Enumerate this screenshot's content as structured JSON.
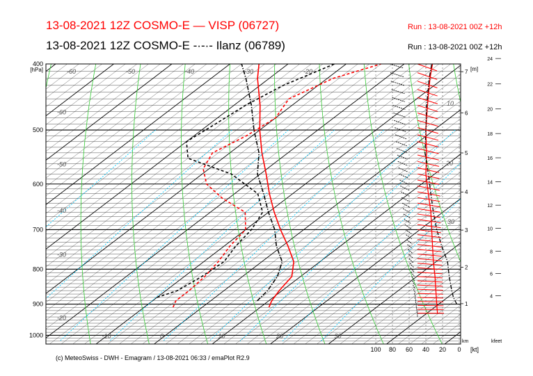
{
  "header": {
    "title_red": "13-08-2021 12Z COSMO-E  —  VISP (06727)",
    "title_black": "13-08-2021 12Z COSMO-E  -·-·- Ilanz (06789)",
    "run_red": "Run : 13-08-2021 00Z +12h",
    "run_black": "Run : 13-08-2021 00Z +12h"
  },
  "footer": {
    "credit": "(c) MeteoSwiss - DWH - Emagram / 13-08-2021  06:33 / emaPlot R2.9"
  },
  "colors": {
    "visp": "#ff0000",
    "ilanz": "#000000",
    "dry_adiabat": "#000000",
    "moist_adiabat": "#33cc33",
    "mixing_ratio": "#00ccff"
  },
  "chart_data": {
    "type": "line",
    "chart_kind": "emagram",
    "ylabel": "[hPa]",
    "pressure_ticks": [
      "400",
      "500",
      "600",
      "700",
      "800",
      "900",
      "1000"
    ],
    "pressure_range": [
      400,
      1030
    ],
    "isotherm_labels": [
      "-60",
      "-50",
      "-40",
      "-30",
      "-20",
      "-10",
      "0",
      "10",
      "20",
      "30"
    ],
    "upper_temp_labels": [
      "-60",
      "-50",
      "-40",
      "-30",
      "-20"
    ],
    "km_label": "[m]",
    "km_ticks": [
      "1",
      "2",
      "3",
      "4",
      "5",
      "6",
      "7"
    ],
    "km_values": [
      1,
      2,
      3,
      4,
      5,
      6,
      7
    ],
    "km_axis_label": "km",
    "kfeet_label": "kfeet",
    "kfeet_ticks": [
      "4",
      "6",
      "8",
      "10",
      "12",
      "14",
      "16",
      "18",
      "20",
      "22",
      "24"
    ],
    "kfeet_values": [
      4,
      6,
      8,
      10,
      12,
      14,
      16,
      18,
      20,
      22,
      24
    ],
    "wind_axis_label": "[kt]",
    "wind_ticks": [
      "100",
      "80",
      "60",
      "40",
      "20",
      "0"
    ],
    "wind_values": [
      100,
      80,
      60,
      40,
      20,
      0
    ],
    "wind_profile_label_values": [
      "10",
      "20",
      "30"
    ],
    "series": [
      {
        "name": "VISP (06727)",
        "color": "#ff0000",
        "temperature": [
          [
            910,
            11.5
          ],
          [
            890,
            10.5
          ],
          [
            860,
            9.5
          ],
          [
            820,
            8.5
          ],
          [
            780,
            5.5
          ],
          [
            740,
            1
          ],
          [
            700,
            -4
          ],
          [
            660,
            -9
          ],
          [
            620,
            -14
          ],
          [
            580,
            -19
          ],
          [
            540,
            -24.5
          ],
          [
            500,
            -30
          ],
          [
            460,
            -35.5
          ],
          [
            420,
            -42
          ],
          [
            400,
            -45
          ]
        ],
        "dewpoint": [
          [
            910,
            -5
          ],
          [
            890,
            -6
          ],
          [
            860,
            -6
          ],
          [
            820,
            -6.5
          ],
          [
            780,
            -7.5
          ],
          [
            740,
            -9
          ],
          [
            700,
            -10
          ],
          [
            660,
            -14
          ],
          [
            630,
            -21
          ],
          [
            600,
            -27
          ],
          [
            570,
            -31
          ],
          [
            540,
            -33
          ],
          [
            510,
            -31
          ],
          [
            480,
            -30
          ],
          [
            450,
            -32
          ],
          [
            420,
            -29
          ],
          [
            400,
            -24
          ]
        ]
      },
      {
        "name": "Ilanz (06789)",
        "color": "#000000",
        "temperature": [
          [
            890,
            8
          ],
          [
            860,
            7.5
          ],
          [
            820,
            6
          ],
          [
            780,
            3.5
          ],
          [
            740,
            -1
          ],
          [
            700,
            -5
          ],
          [
            660,
            -10
          ],
          [
            620,
            -15
          ],
          [
            580,
            -20.5
          ],
          [
            540,
            -25
          ],
          [
            500,
            -31
          ],
          [
            460,
            -37
          ],
          [
            420,
            -44
          ],
          [
            400,
            -48
          ]
        ],
        "dewpoint": [
          [
            880,
            -10
          ],
          [
            860,
            -8
          ],
          [
            820,
            -7
          ],
          [
            780,
            -6.5
          ],
          [
            740,
            -8
          ],
          [
            700,
            -9
          ],
          [
            660,
            -11
          ],
          [
            620,
            -16
          ],
          [
            580,
            -25
          ],
          [
            550,
            -36
          ],
          [
            520,
            -40
          ],
          [
            490,
            -39
          ],
          [
            460,
            -38
          ],
          [
            430,
            -36
          ],
          [
            400,
            -32
          ]
        ]
      }
    ],
    "visp_wind_speed_kt": [
      [
        930,
        26
      ],
      [
        900,
        27
      ],
      [
        860,
        28
      ],
      [
        820,
        29
      ],
      [
        780,
        31
      ],
      [
        740,
        32
      ],
      [
        700,
        33
      ],
      [
        660,
        34
      ],
      [
        620,
        37
      ],
      [
        580,
        40
      ],
      [
        540,
        39
      ],
      [
        500,
        40
      ],
      [
        460,
        38
      ],
      [
        420,
        35
      ],
      [
        400,
        32
      ]
    ],
    "ilanz_wind_speed_kt": [
      [
        900,
        3
      ],
      [
        880,
        7
      ],
      [
        860,
        9
      ],
      [
        820,
        12
      ],
      [
        780,
        14
      ],
      [
        740,
        21
      ],
      [
        700,
        27
      ],
      [
        660,
        31
      ],
      [
        620,
        34
      ],
      [
        580,
        37
      ],
      [
        540,
        41
      ],
      [
        500,
        40
      ],
      [
        460,
        39
      ],
      [
        420,
        36
      ],
      [
        400,
        33
      ]
    ]
  }
}
